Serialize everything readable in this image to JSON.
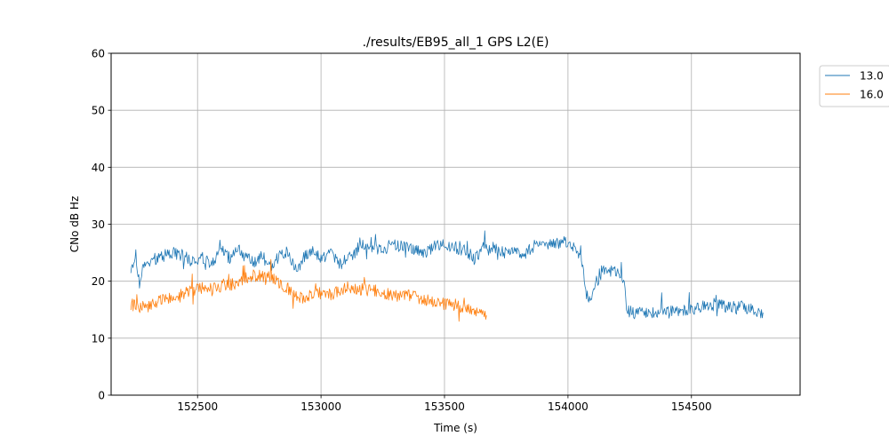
{
  "chart_data": {
    "type": "line",
    "title": "./results/EB95_all_1 GPS L2(E)",
    "xlabel": "Time (s)",
    "ylabel": "CNo dB Hz",
    "xlim": [
      152150,
      154940
    ],
    "ylim": [
      0,
      60
    ],
    "x_ticks": [
      152500,
      153000,
      153500,
      154000,
      154500
    ],
    "y_ticks": [
      0,
      10,
      20,
      30,
      40,
      50,
      60
    ],
    "grid": true,
    "legend_position": "upper-right-outside",
    "series": [
      {
        "name": "13.0",
        "color": "#1f77b4",
        "points": [
          [
            152230,
            22.5
          ],
          [
            152250,
            24.5
          ],
          [
            152265,
            19.5
          ],
          [
            152280,
            22.5
          ],
          [
            152300,
            23.0
          ],
          [
            152330,
            24.0
          ],
          [
            152360,
            24.5
          ],
          [
            152400,
            25.0
          ],
          [
            152440,
            24.5
          ],
          [
            152480,
            23.5
          ],
          [
            152520,
            24.0
          ],
          [
            152560,
            23.0
          ],
          [
            152600,
            25.5
          ],
          [
            152630,
            24.0
          ],
          [
            152660,
            26.0
          ],
          [
            152700,
            24.0
          ],
          [
            152730,
            23.0
          ],
          [
            152760,
            24.5
          ],
          [
            152800,
            22.5
          ],
          [
            152830,
            24.5
          ],
          [
            152860,
            25.0
          ],
          [
            152900,
            22.0
          ],
          [
            152930,
            24.0
          ],
          [
            152960,
            25.5
          ],
          [
            153000,
            24.0
          ],
          [
            153040,
            25.0
          ],
          [
            153080,
            23.0
          ],
          [
            153110,
            24.0
          ],
          [
            153140,
            25.0
          ],
          [
            153160,
            27.0
          ],
          [
            153200,
            26.0
          ],
          [
            153250,
            25.5
          ],
          [
            153290,
            26.5
          ],
          [
            153330,
            26.0
          ],
          [
            153370,
            25.5
          ],
          [
            153420,
            25.0
          ],
          [
            153460,
            26.0
          ],
          [
            153500,
            26.5
          ],
          [
            153540,
            26.0
          ],
          [
            153580,
            25.5
          ],
          [
            153620,
            24.0
          ],
          [
            153660,
            26.0
          ],
          [
            153700,
            26.0
          ],
          [
            153740,
            25.0
          ],
          [
            153780,
            25.5
          ],
          [
            153820,
            24.5
          ],
          [
            153870,
            26.5
          ],
          [
            153910,
            26.0
          ],
          [
            153950,
            26.5
          ],
          [
            153990,
            27.0
          ],
          [
            154020,
            26.0
          ],
          [
            154040,
            25.5
          ],
          [
            154060,
            22.5
          ],
          [
            154075,
            18.5
          ],
          [
            154090,
            16.0
          ],
          [
            154110,
            19.5
          ],
          [
            154130,
            21.0
          ],
          [
            154150,
            22.5
          ],
          [
            154170,
            22.0
          ],
          [
            154190,
            21.5
          ],
          [
            154210,
            21.0
          ],
          [
            154225,
            20.0
          ],
          [
            154240,
            15.0
          ],
          [
            154260,
            14.5
          ],
          [
            154300,
            14.5
          ],
          [
            154350,
            14.5
          ],
          [
            154400,
            14.5
          ],
          [
            154450,
            15.0
          ],
          [
            154500,
            15.0
          ],
          [
            154550,
            15.5
          ],
          [
            154600,
            16.0
          ],
          [
            154650,
            15.5
          ],
          [
            154700,
            15.5
          ],
          [
            154750,
            15.0
          ],
          [
            154790,
            14.5
          ]
        ]
      },
      {
        "name": "16.0",
        "color": "#ff7f0e",
        "points": [
          [
            152230,
            16.0
          ],
          [
            152260,
            15.5
          ],
          [
            152300,
            15.5
          ],
          [
            152340,
            16.5
          ],
          [
            152380,
            17.0
          ],
          [
            152420,
            17.5
          ],
          [
            152460,
            18.0
          ],
          [
            152500,
            18.5
          ],
          [
            152540,
            19.0
          ],
          [
            152580,
            19.0
          ],
          [
            152620,
            19.5
          ],
          [
            152660,
            19.5
          ],
          [
            152690,
            20.5
          ],
          [
            152720,
            21.0
          ],
          [
            152760,
            21.0
          ],
          [
            152800,
            20.5
          ],
          [
            152830,
            19.5
          ],
          [
            152860,
            19.0
          ],
          [
            152890,
            18.0
          ],
          [
            152920,
            17.0
          ],
          [
            152960,
            17.5
          ],
          [
            153000,
            18.0
          ],
          [
            153040,
            17.5
          ],
          [
            153080,
            18.5
          ],
          [
            153120,
            19.0
          ],
          [
            153160,
            18.5
          ],
          [
            153200,
            18.5
          ],
          [
            153250,
            18.0
          ],
          [
            153300,
            17.5
          ],
          [
            153350,
            17.5
          ],
          [
            153400,
            17.0
          ],
          [
            153450,
            16.5
          ],
          [
            153500,
            16.0
          ],
          [
            153550,
            15.5
          ],
          [
            153600,
            15.0
          ],
          [
            153640,
            14.5
          ],
          [
            153670,
            14.0
          ]
        ]
      }
    ]
  }
}
